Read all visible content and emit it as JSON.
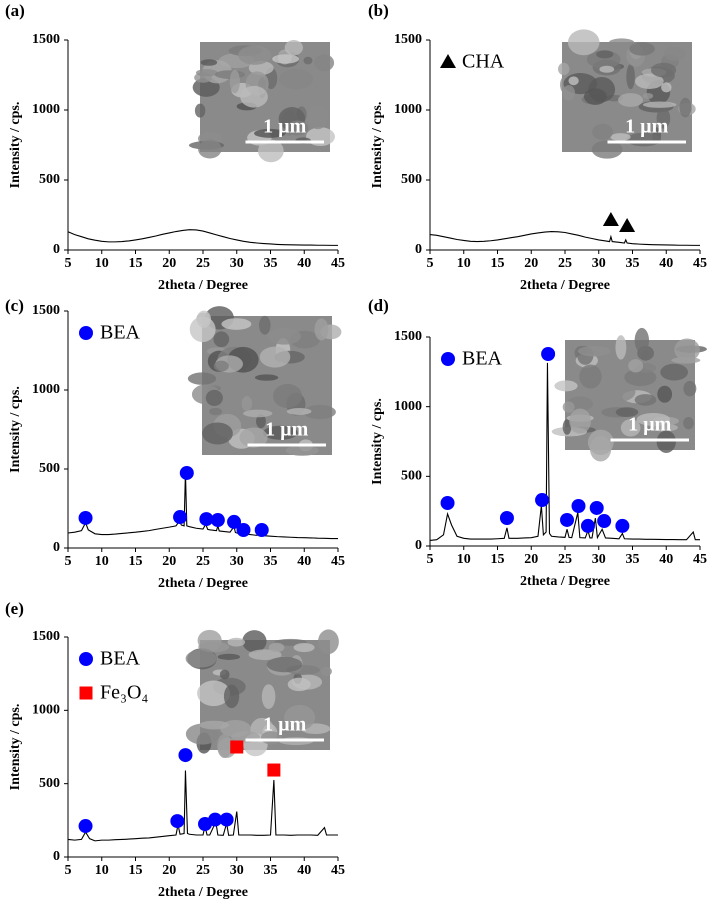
{
  "chart_data": [
    {
      "type": "line",
      "panel_label": "(a)",
      "xlabel": "2theta / Degree",
      "ylabel": "Intensity / cps.",
      "scale_bar": "1 µm",
      "xlim": [
        5,
        45
      ],
      "ylim": [
        0,
        1500
      ],
      "xticks": [
        5,
        10,
        15,
        20,
        25,
        30,
        35,
        40,
        45
      ],
      "yticks": [
        0,
        500,
        1000,
        1500
      ],
      "color": "#000000",
      "x": [
        5,
        6,
        7,
        8,
        9,
        10,
        11,
        12,
        13,
        14,
        15,
        16,
        17,
        18,
        19,
        20,
        21,
        22,
        23,
        24,
        25,
        26,
        27,
        28,
        29,
        30,
        31,
        32,
        33,
        34,
        35,
        36,
        37,
        38,
        39,
        40,
        41,
        42,
        43,
        44,
        45
      ],
      "values": [
        130,
        110,
        95,
        80,
        70,
        62,
        58,
        58,
        60,
        65,
        72,
        80,
        90,
        100,
        112,
        122,
        132,
        140,
        145,
        143,
        135,
        122,
        108,
        95,
        82,
        72,
        62,
        55,
        50,
        46,
        43,
        40,
        38,
        37,
        36,
        35,
        35,
        34,
        34,
        33,
        33
      ],
      "markers": []
    },
    {
      "type": "line",
      "panel_label": "(b)",
      "xlabel": "2theta / Degree",
      "ylabel": "Intensity / cps.",
      "scale_bar": "1 µm",
      "xlim": [
        5,
        45
      ],
      "ylim": [
        0,
        1500
      ],
      "xticks": [
        5,
        10,
        15,
        20,
        25,
        30,
        35,
        40,
        45
      ],
      "yticks": [
        0,
        500,
        1000,
        1500
      ],
      "color": "#000000",
      "x": [
        5,
        6,
        7,
        8,
        9,
        10,
        11,
        12,
        13,
        14,
        15,
        16,
        17,
        18,
        19,
        20,
        21,
        22,
        23,
        24,
        25,
        26,
        27,
        28,
        29,
        30,
        31,
        31.6,
        31.8,
        32,
        33,
        33.8,
        34,
        34.2,
        35,
        36,
        37,
        38,
        39,
        40,
        41,
        42,
        43,
        44,
        45
      ],
      "values": [
        110,
        105,
        95,
        85,
        75,
        68,
        62,
        60,
        62,
        66,
        72,
        80,
        88,
        95,
        105,
        115,
        122,
        128,
        132,
        130,
        125,
        115,
        105,
        92,
        82,
        72,
        65,
        60,
        95,
        60,
        55,
        50,
        72,
        50,
        45,
        42,
        40,
        38,
        37,
        36,
        35,
        34,
        34,
        33,
        33
      ],
      "markers": [
        {
          "name": "CHA",
          "marker": "triangle",
          "color": "#000000",
          "x": [
            31.8,
            34.2
          ],
          "values": [
            214,
            171
          ]
        }
      ]
    },
    {
      "type": "line",
      "panel_label": "(c)",
      "xlabel": "2theta / Degree",
      "ylabel": "Intensity / cps.",
      "scale_bar": "1 µm",
      "xlim": [
        5,
        45
      ],
      "ylim": [
        0,
        1500
      ],
      "xticks": [
        5,
        10,
        15,
        20,
        25,
        30,
        35,
        40,
        45
      ],
      "yticks": [
        0,
        500,
        1000,
        1500
      ],
      "color": "#000000",
      "x": [
        5,
        6,
        7,
        7.6,
        8,
        9,
        10,
        11,
        12,
        13,
        14,
        15,
        16,
        17,
        18,
        19,
        20,
        21,
        21.5,
        21.8,
        22.2,
        22.4,
        22.6,
        23,
        24,
        25,
        25.4,
        25.7,
        26,
        27,
        27.2,
        27.4,
        28,
        29,
        29.6,
        29.8,
        30,
        31,
        32,
        33,
        33.6,
        34,
        35,
        36,
        37,
        38,
        39,
        40,
        41,
        42,
        43,
        44,
        45
      ],
      "values": [
        95,
        100,
        110,
        160,
        115,
        90,
        85,
        85,
        88,
        92,
        96,
        100,
        105,
        110,
        118,
        125,
        132,
        140,
        170,
        145,
        140,
        480,
        140,
        135,
        125,
        120,
        150,
        118,
        115,
        110,
        140,
        108,
        105,
        100,
        135,
        98,
        95,
        90,
        85,
        80,
        95,
        78,
        75,
        72,
        70,
        68,
        66,
        65,
        64,
        62,
        61,
        60,
        60
      ],
      "markers": [
        {
          "name": "BEA",
          "marker": "circle",
          "color": "#0000ff",
          "x": [
            7.6,
            21.6,
            22.6,
            25.5,
            27.2,
            29.6,
            31,
            33.7
          ],
          "values": [
            190,
            196,
            475,
            183,
            177,
            165,
            114,
            114
          ]
        }
      ]
    },
    {
      "type": "line",
      "panel_label": "(d)",
      "xlabel": "2theta / Degree",
      "ylabel": "Intensity / cps.",
      "scale_bar": "1 µm",
      "xlim": [
        5,
        45
      ],
      "ylim": [
        0,
        1500
      ],
      "xticks": [
        5,
        10,
        15,
        20,
        25,
        30,
        35,
        40,
        45
      ],
      "yticks": [
        0,
        500,
        1000,
        1500
      ],
      "color": "#000000",
      "x": [
        5,
        6,
        7,
        7.6,
        8.2,
        9,
        10,
        11,
        12,
        13,
        14,
        15,
        16,
        16.4,
        16.7,
        17,
        18,
        19,
        20,
        21,
        21.5,
        21.8,
        22.2,
        22.4,
        22.7,
        23,
        24,
        25,
        25.3,
        25.6,
        26,
        26.9,
        27.2,
        28,
        28.4,
        28.7,
        29,
        29.5,
        29.8,
        30.5,
        31,
        32,
        33,
        33.5,
        33.8,
        35,
        36,
        37,
        38,
        39,
        40,
        41,
        42,
        43,
        44,
        44.3,
        45
      ],
      "values": [
        40,
        45,
        80,
        230,
        150,
        70,
        55,
        50,
        50,
        50,
        50,
        52,
        55,
        130,
        55,
        55,
        55,
        58,
        60,
        70,
        290,
        80,
        100,
        1314,
        90,
        70,
        65,
        62,
        120,
        62,
        60,
        240,
        60,
        58,
        110,
        58,
        58,
        200,
        60,
        120,
        58,
        55,
        52,
        90,
        52,
        50,
        50,
        48,
        48,
        47,
        46,
        46,
        45,
        45,
        100,
        45,
        45
      ],
      "markers": [
        {
          "name": "BEA",
          "marker": "circle",
          "color": "#0000ff",
          "x": [
            7.6,
            16.4,
            21.6,
            22.5,
            25.3,
            27,
            28.4,
            29.7,
            30.8,
            33.5
          ],
          "values": [
            309,
            201,
            330,
            1378,
            187,
            287,
            144,
            273,
            179,
            144
          ]
        }
      ]
    },
    {
      "type": "line",
      "panel_label": "(e)",
      "xlabel": "2theta / Degree",
      "ylabel": "Intensity / cps.",
      "scale_bar": "1 µm",
      "xlim": [
        5,
        45
      ],
      "ylim": [
        0,
        1500
      ],
      "xticks": [
        5,
        10,
        15,
        20,
        25,
        30,
        35,
        40,
        45
      ],
      "yticks": [
        0,
        500,
        1000,
        1500
      ],
      "color": "#000000",
      "x": [
        5,
        6,
        7,
        7.6,
        8.2,
        9,
        10,
        11,
        12,
        13,
        14,
        15,
        16,
        17,
        18,
        19,
        20,
        21,
        21.3,
        21.6,
        22.2,
        22.4,
        22.7,
        23,
        24,
        25,
        25.3,
        25.6,
        26,
        26.9,
        27.2,
        28,
        28.5,
        28.8,
        29.5,
        30,
        30.3,
        31,
        32,
        33,
        34,
        35,
        35.5,
        35.8,
        37,
        38,
        39,
        40,
        41,
        42,
        43,
        43.3,
        44,
        45
      ],
      "values": [
        120,
        115,
        120,
        170,
        125,
        110,
        115,
        115,
        118,
        120,
        122,
        125,
        128,
        130,
        135,
        140,
        145,
        150,
        220,
        155,
        160,
        590,
        160,
        155,
        150,
        150,
        210,
        150,
        150,
        240,
        150,
        148,
        230,
        148,
        150,
        310,
        150,
        150,
        150,
        148,
        148,
        150,
        525,
        150,
        150,
        148,
        150,
        150,
        150,
        148,
        200,
        150,
        150,
        150
      ],
      "markers": [
        {
          "name": "BEA",
          "marker": "circle",
          "color": "#0000ff",
          "x": [
            7.6,
            21.2,
            22.4,
            25.3,
            26.8,
            28.5
          ],
          "values": [
            211,
            245,
            695,
            225,
            255,
            255
          ]
        },
        {
          "name": "Fe₃O₄",
          "marker": "square",
          "color": "#ff0000",
          "x": [
            30,
            35.5
          ],
          "values": [
            750,
            593
          ]
        }
      ]
    }
  ]
}
